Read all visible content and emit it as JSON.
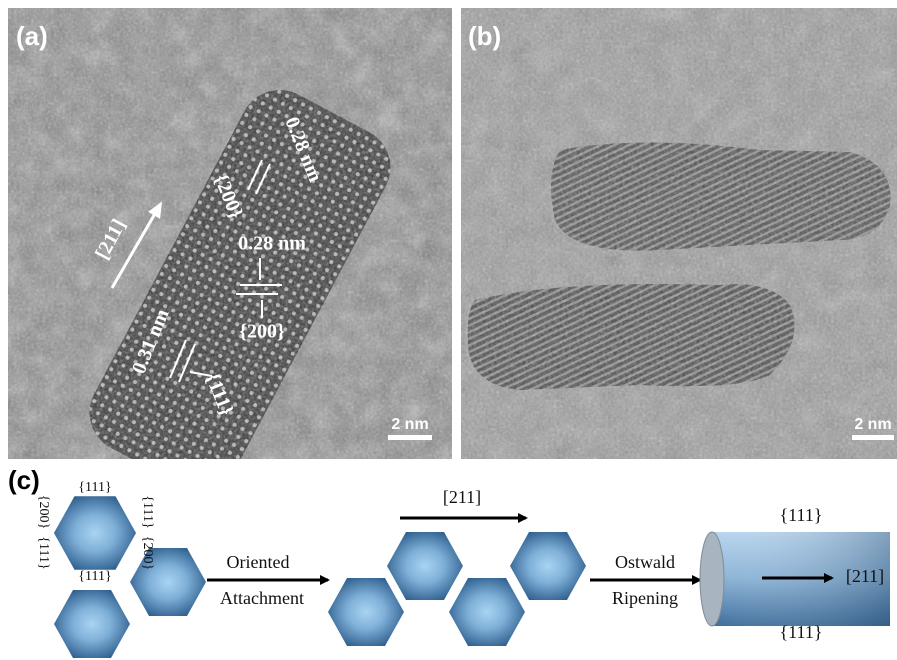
{
  "panel_a": {
    "label": "(a)",
    "direction": "[211]",
    "spacing_top": "0.28 nm",
    "facet_top": "{200}",
    "spacing_mid": "0.28 nm",
    "facet_mid": "{200}",
    "spacing_low": "0.31 nm",
    "facet_low": "{111}",
    "scale_bar": "2 nm"
  },
  "panel_b": {
    "label": "(b)",
    "scale_bar": "2 nm"
  },
  "panel_c": {
    "label": "(c)",
    "facets": [
      "{111}",
      "{200}",
      "{111}",
      "{111}",
      "{200}",
      "{111}"
    ],
    "step1": {
      "line1": "Oriented",
      "line2": "Attachment"
    },
    "growth_direction": "[211]",
    "step2": {
      "line1": "Ostwald",
      "line2": "Ripening"
    },
    "rod": {
      "top_facet": "{111}",
      "axis": "[211]",
      "bottom_facet": "{111}"
    }
  }
}
